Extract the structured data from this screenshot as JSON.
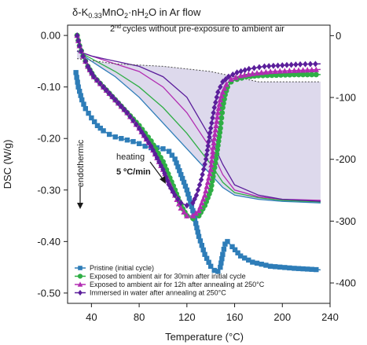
{
  "chart_data": {
    "type": "line",
    "title": "δ-K0.33MnO2·nH2O in Ar flow",
    "title_parts": {
      "lead": "δ-K",
      "sub1": "0.33",
      "mid": "MnO",
      "sub2": "2",
      "tail": "·nH",
      "sub3": "2",
      "end": "O in Ar flow"
    },
    "xlabel": "Temperature (°C)",
    "ylabel": "DSC (W/g)",
    "xlim": [
      20,
      240
    ],
    "ylim": [
      -0.52,
      0.02
    ],
    "y2lim": [
      -433,
      17
    ],
    "x_ticks": [
      40,
      80,
      120,
      160,
      200,
      240
    ],
    "y_ticks": [
      0.0,
      -0.1,
      -0.2,
      -0.3,
      -0.4,
      -0.5
    ],
    "y_tick_labels": [
      "0.00",
      "-0.10",
      "-0.20",
      "-0.30",
      "-0.40",
      "-0.50"
    ],
    "y2_ticks": [
      0,
      -100,
      -200,
      -300,
      -400
    ],
    "y2_tick_labels": [
      "0",
      "-100",
      "-200",
      "-300",
      "-400"
    ],
    "grid": false,
    "legend_position": "bottom-left",
    "annotations": {
      "second_cycles_sup": "nd",
      "second_cycles_num": "2",
      "second_cycles_text": "cycles without pre-exposure to ambient air",
      "endothermic": "endothermic",
      "heating": "heating",
      "rate": "5 ºC/min"
    },
    "series": [
      {
        "name": "Pristine (initial cycle)",
        "color": "#2E7DB8",
        "marker": "square",
        "x": [
          27,
          29,
          32,
          35,
          40,
          45,
          50,
          55,
          60,
          65,
          70,
          75,
          80,
          85,
          90,
          95,
          100,
          105,
          110,
          115,
          120,
          125,
          130,
          135,
          140,
          143,
          146,
          148,
          150,
          152,
          154,
          158,
          165,
          175,
          190,
          210,
          232
        ],
        "y": [
          -0.072,
          -0.1,
          -0.125,
          -0.142,
          -0.16,
          -0.175,
          -0.185,
          -0.192,
          -0.197,
          -0.2,
          -0.203,
          -0.206,
          -0.21,
          -0.215,
          -0.218,
          -0.218,
          -0.22,
          -0.225,
          -0.24,
          -0.27,
          -0.3,
          -0.34,
          -0.39,
          -0.425,
          -0.448,
          -0.456,
          -0.458,
          -0.45,
          -0.425,
          -0.405,
          -0.4,
          -0.41,
          -0.428,
          -0.44,
          -0.448,
          -0.452,
          -0.455
        ]
      },
      {
        "name": "Exposed to ambient air for 30min after initial cycle",
        "color": "#2FAE45",
        "marker": "circle",
        "x": [
          28,
          30,
          33,
          37,
          42,
          50,
          60,
          70,
          80,
          90,
          100,
          110,
          115,
          120,
          125,
          130,
          135,
          140,
          145,
          148,
          150,
          152,
          154,
          157,
          162,
          170,
          180,
          195,
          210,
          232
        ],
        "y": [
          0.0,
          -0.02,
          -0.04,
          -0.06,
          -0.08,
          -0.1,
          -0.125,
          -0.15,
          -0.175,
          -0.205,
          -0.245,
          -0.3,
          -0.33,
          -0.35,
          -0.355,
          -0.35,
          -0.33,
          -0.3,
          -0.23,
          -0.18,
          -0.14,
          -0.115,
          -0.1,
          -0.09,
          -0.085,
          -0.08,
          -0.078,
          -0.077,
          -0.076,
          -0.076
        ]
      },
      {
        "name": "Exposed to ambient air for 12h after annealing at 250°C",
        "color": "#B22CB2",
        "marker": "triangle",
        "x": [
          28,
          30,
          33,
          37,
          42,
          50,
          60,
          70,
          80,
          90,
          100,
          110,
          115,
          120,
          125,
          130,
          135,
          140,
          143,
          146,
          148,
          150,
          153,
          157,
          165,
          175,
          190,
          210,
          232
        ],
        "y": [
          0.0,
          -0.02,
          -0.04,
          -0.06,
          -0.08,
          -0.1,
          -0.125,
          -0.15,
          -0.18,
          -0.215,
          -0.26,
          -0.31,
          -0.335,
          -0.35,
          -0.35,
          -0.34,
          -0.31,
          -0.26,
          -0.2,
          -0.15,
          -0.125,
          -0.11,
          -0.095,
          -0.085,
          -0.078,
          -0.074,
          -0.07,
          -0.068,
          -0.066
        ]
      },
      {
        "name": "Immersed in water after annealing at 250°C",
        "color": "#5B1E9B",
        "marker": "diamond",
        "x": [
          28,
          30,
          33,
          37,
          42,
          50,
          60,
          70,
          80,
          90,
          100,
          105,
          110,
          115,
          120,
          125,
          128,
          132,
          136,
          140,
          143,
          146,
          150,
          155,
          162,
          172,
          185,
          200,
          215,
          232
        ],
        "y": [
          0.0,
          -0.02,
          -0.04,
          -0.06,
          -0.08,
          -0.1,
          -0.125,
          -0.15,
          -0.18,
          -0.215,
          -0.26,
          -0.29,
          -0.31,
          -0.325,
          -0.33,
          -0.325,
          -0.31,
          -0.28,
          -0.24,
          -0.18,
          -0.14,
          -0.11,
          -0.09,
          -0.08,
          -0.072,
          -0.065,
          -0.06,
          -0.058,
          -0.056,
          -0.055
        ]
      }
    ],
    "second_cycles": [
      {
        "color": "#2E7DB8",
        "x": [
          28,
          40,
          60,
          80,
          100,
          120,
          140,
          150,
          160,
          180,
          200,
          232
        ],
        "y": [
          -0.03,
          -0.05,
          -0.08,
          -0.12,
          -0.17,
          -0.22,
          -0.27,
          -0.295,
          -0.31,
          -0.318,
          -0.322,
          -0.325
        ]
      },
      {
        "color": "#2FAE45",
        "x": [
          28,
          40,
          60,
          80,
          100,
          120,
          140,
          150,
          160,
          180,
          200,
          232
        ],
        "y": [
          -0.03,
          -0.045,
          -0.07,
          -0.1,
          -0.14,
          -0.19,
          -0.25,
          -0.285,
          -0.305,
          -0.315,
          -0.32,
          -0.323
        ]
      },
      {
        "color": "#B22CB2",
        "x": [
          28,
          40,
          60,
          80,
          100,
          120,
          140,
          150,
          160,
          180,
          200,
          232
        ],
        "y": [
          -0.03,
          -0.04,
          -0.055,
          -0.07,
          -0.1,
          -0.15,
          -0.22,
          -0.27,
          -0.3,
          -0.313,
          -0.318,
          -0.32
        ]
      },
      {
        "color": "#5B1E9B",
        "x": [
          28,
          40,
          60,
          80,
          100,
          120,
          140,
          150,
          160,
          180,
          200,
          232
        ],
        "y": [
          -0.03,
          -0.04,
          -0.05,
          -0.06,
          -0.08,
          -0.12,
          -0.2,
          -0.25,
          -0.29,
          -0.31,
          -0.318,
          -0.322
        ]
      }
    ],
    "second_cycle_upper": {
      "x": [
        28,
        60,
        100,
        140,
        180,
        232
      ],
      "y": [
        -0.045,
        -0.055,
        -0.06,
        -0.07,
        -0.09,
        -0.09
      ]
    }
  }
}
